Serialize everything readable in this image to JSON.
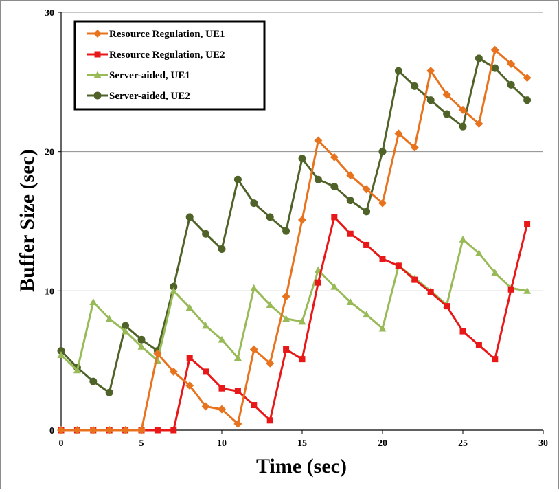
{
  "chart_data": {
    "type": "line",
    "title": "",
    "xlabel": "Time (sec)",
    "ylabel": "Buffer Size (sec)",
    "xlim": [
      0,
      30
    ],
    "ylim": [
      0,
      30
    ],
    "xticks": [
      0,
      5,
      10,
      15,
      20,
      25,
      30
    ],
    "yticks": [
      0,
      10,
      20,
      30
    ],
    "grid": "horizontal",
    "legend_position": "top-left",
    "series": [
      {
        "name": "Resource Regulation, UE1",
        "color": "#e8731e",
        "marker": "diamond",
        "x": [
          0,
          1,
          2,
          3,
          4,
          5,
          6,
          7,
          8,
          9,
          10,
          11,
          12,
          13,
          14,
          15,
          16,
          17,
          18,
          19,
          20,
          21,
          22,
          23,
          24,
          25,
          26,
          27,
          28,
          29
        ],
        "values": [
          0,
          0,
          0,
          0,
          0,
          0,
          5.5,
          4.2,
          3.2,
          1.7,
          1.5,
          0.45,
          5.8,
          4.8,
          9.6,
          15.1,
          20.8,
          19.6,
          18.3,
          17.3,
          16.3,
          21.3,
          20.3,
          25.8,
          24.1,
          23.0,
          22.0,
          27.3,
          26.3,
          25.3
        ]
      },
      {
        "name": "Resource Regulation, UE2",
        "color": "#e81818",
        "marker": "square",
        "x": [
          0,
          1,
          2,
          3,
          4,
          5,
          6,
          7,
          8,
          9,
          10,
          11,
          12,
          13,
          14,
          15,
          16,
          17,
          18,
          19,
          20,
          21,
          22,
          23,
          24,
          25,
          26,
          27,
          28,
          29
        ],
        "values": [
          0,
          0,
          0,
          0,
          0,
          0,
          0,
          0,
          5.2,
          4.2,
          3.0,
          2.8,
          1.8,
          0.7,
          5.8,
          5.1,
          10.6,
          15.3,
          14.1,
          13.3,
          12.3,
          11.8,
          10.8,
          9.9,
          8.9,
          7.1,
          6.1,
          5.1,
          10.1,
          14.8
        ]
      },
      {
        "name": "Server-aided, UE1",
        "color": "#98bb58",
        "marker": "triangle",
        "x": [
          0,
          1,
          2,
          3,
          4,
          5,
          6,
          7,
          8,
          9,
          10,
          11,
          12,
          13,
          14,
          15,
          16,
          17,
          18,
          19,
          20,
          21,
          22,
          23,
          24,
          25,
          26,
          27,
          28,
          29
        ],
        "values": [
          5.4,
          4.3,
          9.2,
          8.0,
          7.1,
          6.0,
          5.0,
          10.0,
          8.8,
          7.5,
          6.5,
          5.2,
          10.2,
          9.0,
          8.0,
          7.8,
          11.5,
          10.3,
          9.2,
          8.3,
          7.3,
          11.8,
          10.9,
          10.0,
          9.0,
          13.7,
          12.7,
          11.3,
          10.2,
          10.0
        ]
      },
      {
        "name": "Server-aided, UE2",
        "color": "#4f6228",
        "marker": "circle",
        "x": [
          0,
          1,
          2,
          3,
          4,
          5,
          6,
          7,
          8,
          9,
          10,
          11,
          12,
          13,
          14,
          15,
          16,
          17,
          18,
          19,
          20,
          21,
          22,
          23,
          24,
          25,
          26,
          27,
          28,
          29
        ],
        "values": [
          5.7,
          4.5,
          3.5,
          2.7,
          7.5,
          6.5,
          5.7,
          10.3,
          15.3,
          14.1,
          13.0,
          18.0,
          16.3,
          15.3,
          14.3,
          19.5,
          18.0,
          17.5,
          16.5,
          15.7,
          20.0,
          25.8,
          24.7,
          23.7,
          22.7,
          21.8,
          26.7,
          26.0,
          24.8,
          23.7
        ]
      }
    ]
  }
}
